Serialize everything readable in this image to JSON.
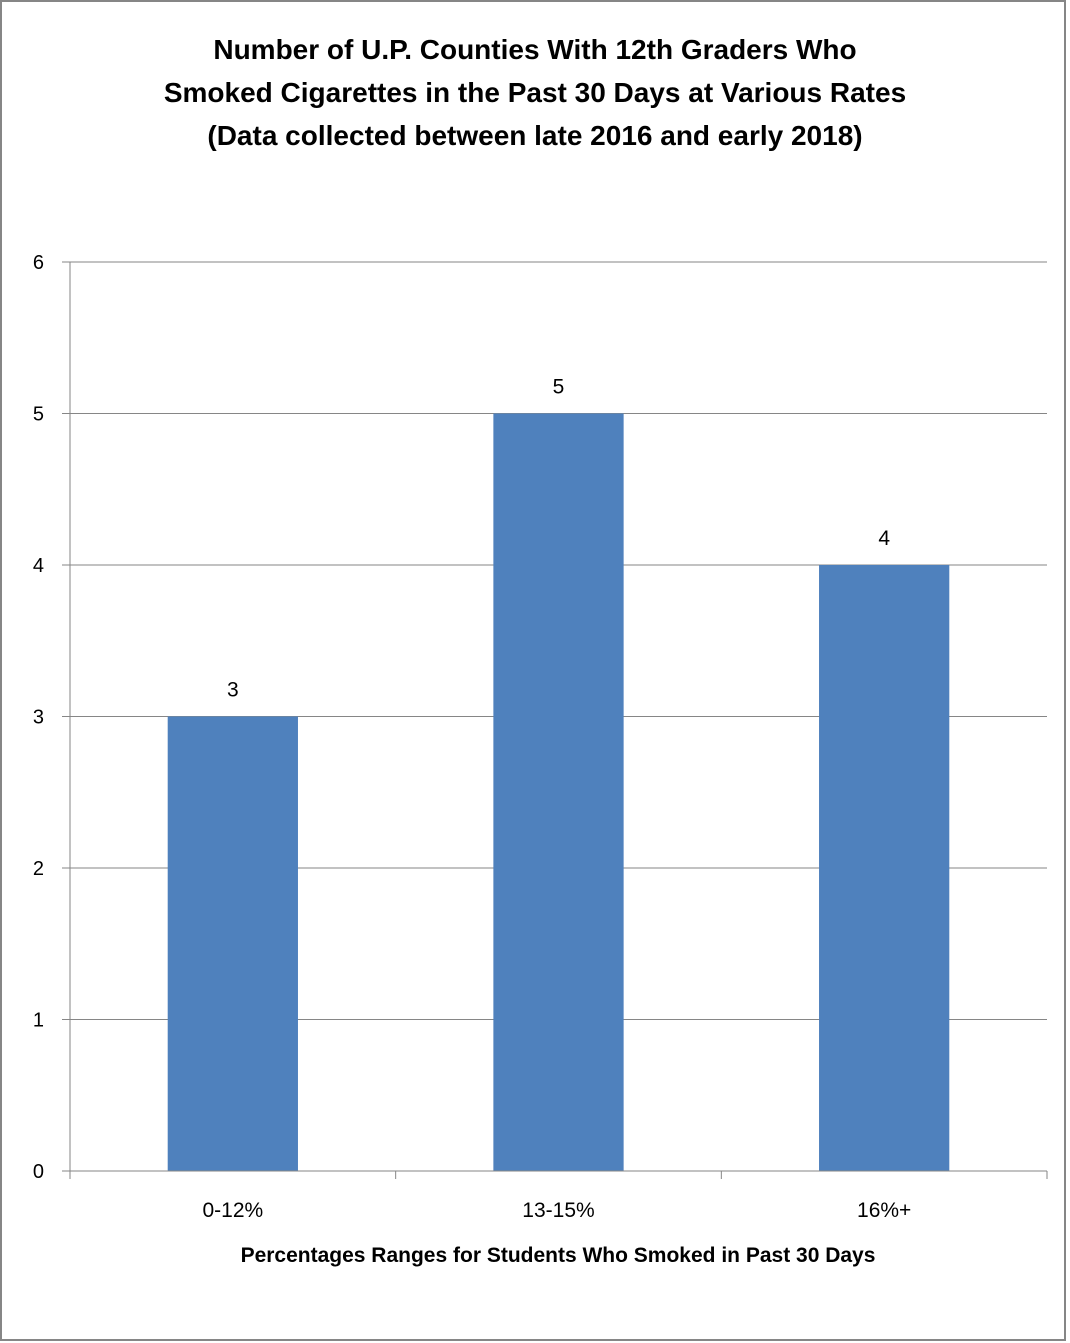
{
  "chart_data": {
    "type": "bar",
    "title_lines": [
      "Number of U.P. Counties With 12th Graders Who",
      "Smoked Cigarettes in the Past 30 Days at Various Rates",
      "(Data collected between late 2016 and early 2018)"
    ],
    "categories": [
      "0-12%",
      "13-15%",
      "16%+"
    ],
    "values": [
      3,
      5,
      4
    ],
    "xlabel": "Percentages Ranges for Students Who Smoked in Past 30 Days",
    "ylabel": "",
    "ylim": [
      0,
      6
    ],
    "yticks": [
      "0",
      "1",
      "2",
      "3",
      "4",
      "5",
      "6"
    ],
    "data_labels": [
      "3",
      "5",
      "4"
    ],
    "grid": true,
    "legend": "none",
    "bar_color": "#4f81bd",
    "grid_color": "#868686"
  }
}
